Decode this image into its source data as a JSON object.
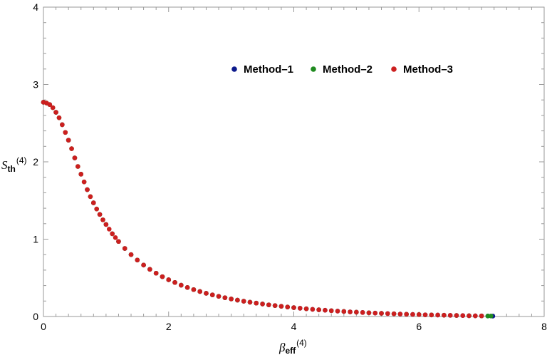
{
  "chart_data": {
    "type": "scatter",
    "xlabel": {
      "main": "β",
      "sub": "eff",
      "sup": "(4)"
    },
    "ylabel": {
      "main": "S",
      "sub": "th",
      "sup": "(4)"
    },
    "xlim": [
      0,
      8
    ],
    "ylim": [
      0,
      4
    ],
    "xticks": [
      "0",
      "2",
      "4",
      "6",
      "8"
    ],
    "yticks": [
      "0",
      "1",
      "2",
      "3",
      "4"
    ],
    "grid": false,
    "legend_position": "top-right",
    "series": [
      {
        "name": "Method–1",
        "color": "#0d1a8c",
        "x": [
          0.0,
          0.1,
          0.2,
          0.3,
          0.4,
          0.5,
          0.6,
          0.7,
          0.8,
          0.9,
          1.0,
          1.1,
          1.2,
          1.3,
          1.4,
          1.5,
          1.6,
          1.7,
          1.8,
          1.9,
          2.0,
          2.1,
          2.2,
          2.3,
          2.4,
          2.5,
          2.6,
          2.7,
          2.8,
          2.9,
          3.0,
          3.1,
          3.2,
          3.3,
          3.4,
          3.5,
          3.6,
          3.7,
          3.8,
          3.9,
          4.0,
          4.1,
          4.2,
          4.3,
          4.4,
          4.5,
          4.6,
          4.7,
          4.8,
          4.9,
          5.0,
          5.1,
          5.2,
          5.3,
          5.4,
          5.5,
          5.6,
          5.7,
          5.8,
          5.9,
          6.0,
          6.1,
          6.2,
          6.3,
          6.4,
          6.5,
          6.6,
          6.7,
          6.8,
          6.9,
          7.0,
          7.1,
          7.18
        ],
        "y": [
          2.77,
          2.74,
          2.64,
          2.48,
          2.28,
          2.05,
          1.84,
          1.64,
          1.47,
          1.32,
          1.19,
          1.07,
          0.97,
          0.88,
          0.8,
          0.73,
          0.665,
          0.61,
          0.56,
          0.515,
          0.475,
          0.44,
          0.405,
          0.375,
          0.348,
          0.323,
          0.3,
          0.28,
          0.261,
          0.243,
          0.227,
          0.212,
          0.198,
          0.185,
          0.173,
          0.162,
          0.151,
          0.141,
          0.132,
          0.123,
          0.115,
          0.107,
          0.1,
          0.093,
          0.087,
          0.081,
          0.075,
          0.07,
          0.065,
          0.06,
          0.056,
          0.052,
          0.048,
          0.044,
          0.041,
          0.038,
          0.035,
          0.032,
          0.029,
          0.027,
          0.025,
          0.022,
          0.02,
          0.019,
          0.017,
          0.015,
          0.013,
          0.012,
          0.01,
          0.009,
          0.008,
          0.006,
          0.005
        ]
      },
      {
        "name": "Method–2",
        "color": "#1f8a1f",
        "x": [
          0.0,
          0.05,
          0.1,
          0.15,
          0.2,
          0.25,
          0.3,
          0.35,
          0.4,
          0.45,
          0.5,
          0.55,
          0.6,
          0.65,
          0.7,
          0.75,
          0.8,
          0.85,
          0.9,
          0.95,
          1.0,
          1.1,
          1.2,
          1.3,
          1.4,
          1.5,
          1.6,
          1.7,
          1.8,
          1.9,
          2.0,
          2.1,
          2.2,
          2.3,
          2.4,
          2.5,
          2.6,
          2.7,
          2.8,
          2.9,
          3.0,
          3.1,
          3.2,
          3.3,
          3.4,
          3.5,
          3.6,
          3.7,
          3.8,
          3.9,
          4.0,
          4.2,
          4.4,
          4.6,
          4.8,
          5.0,
          5.2,
          5.4,
          5.6,
          5.8,
          6.0,
          6.2,
          6.4,
          6.6,
          6.8,
          7.0,
          7.1,
          7.15
        ],
        "y": [
          2.77,
          2.76,
          2.74,
          2.7,
          2.64,
          2.57,
          2.48,
          2.38,
          2.28,
          2.17,
          2.05,
          1.94,
          1.84,
          1.74,
          1.64,
          1.55,
          1.47,
          1.39,
          1.32,
          1.25,
          1.19,
          1.07,
          0.97,
          0.88,
          0.8,
          0.73,
          0.665,
          0.61,
          0.56,
          0.515,
          0.475,
          0.44,
          0.405,
          0.375,
          0.348,
          0.323,
          0.3,
          0.28,
          0.261,
          0.243,
          0.227,
          0.212,
          0.198,
          0.185,
          0.173,
          0.162,
          0.151,
          0.141,
          0.132,
          0.123,
          0.115,
          0.1,
          0.087,
          0.075,
          0.065,
          0.056,
          0.048,
          0.041,
          0.035,
          0.029,
          0.025,
          0.02,
          0.017,
          0.013,
          0.01,
          0.008,
          0.006,
          0.006
        ]
      },
      {
        "name": "Method–3",
        "color": "#cc1f1f",
        "x": [
          0.0,
          0.05,
          0.1,
          0.15,
          0.2,
          0.25,
          0.3,
          0.35,
          0.4,
          0.45,
          0.5,
          0.55,
          0.6,
          0.65,
          0.7,
          0.75,
          0.8,
          0.85,
          0.9,
          0.95,
          1.0,
          1.05,
          1.1,
          1.15,
          1.2,
          1.3,
          1.4,
          1.5,
          1.6,
          1.7,
          1.8,
          1.9,
          2.0,
          2.1,
          2.2,
          2.3,
          2.4,
          2.5,
          2.6,
          2.7,
          2.8,
          2.9,
          3.0,
          3.1,
          3.2,
          3.3,
          3.4,
          3.5,
          3.6,
          3.7,
          3.8,
          3.9,
          4.0,
          4.1,
          4.2,
          4.3,
          4.4,
          4.5,
          4.6,
          4.7,
          4.8,
          4.9,
          5.0,
          5.1,
          5.2,
          5.3,
          5.4,
          5.5,
          5.6,
          5.7,
          5.8,
          5.9,
          6.0,
          6.1,
          6.2,
          6.3,
          6.4,
          6.5,
          6.6,
          6.7,
          6.8,
          6.9,
          7.0
        ],
        "y": [
          2.77,
          2.76,
          2.74,
          2.7,
          2.64,
          2.57,
          2.48,
          2.38,
          2.28,
          2.17,
          2.05,
          1.94,
          1.84,
          1.74,
          1.64,
          1.55,
          1.47,
          1.39,
          1.32,
          1.25,
          1.19,
          1.13,
          1.07,
          1.02,
          0.97,
          0.88,
          0.8,
          0.73,
          0.665,
          0.61,
          0.56,
          0.515,
          0.475,
          0.44,
          0.405,
          0.375,
          0.348,
          0.323,
          0.3,
          0.28,
          0.261,
          0.243,
          0.227,
          0.212,
          0.198,
          0.185,
          0.173,
          0.162,
          0.151,
          0.141,
          0.132,
          0.123,
          0.115,
          0.107,
          0.1,
          0.093,
          0.087,
          0.081,
          0.075,
          0.07,
          0.065,
          0.06,
          0.056,
          0.052,
          0.048,
          0.044,
          0.041,
          0.038,
          0.035,
          0.032,
          0.029,
          0.027,
          0.025,
          0.022,
          0.02,
          0.019,
          0.017,
          0.015,
          0.013,
          0.012,
          0.01,
          0.009,
          0.008
        ]
      }
    ]
  }
}
